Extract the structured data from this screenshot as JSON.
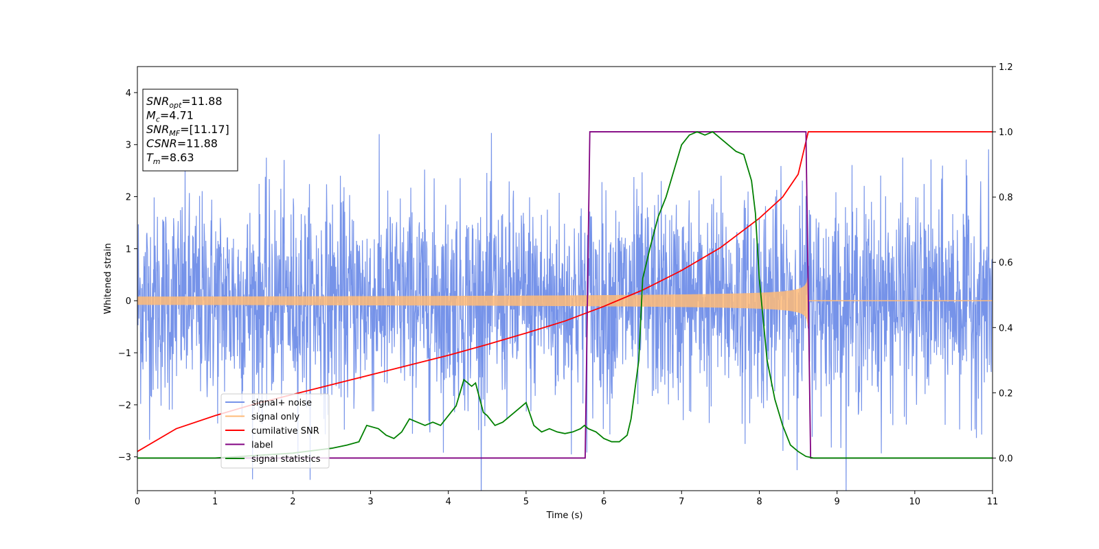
{
  "chart_data": {
    "type": "line",
    "xlabel": "Time (s)",
    "ylabel_left": "Whitened strain",
    "ylabel_right": "",
    "xlim": [
      0,
      11
    ],
    "ylim_left": [
      -3.65,
      4.5
    ],
    "ylim_right": [
      -0.1,
      1.2
    ],
    "xticks": [
      0,
      1,
      2,
      3,
      4,
      5,
      6,
      7,
      8,
      9,
      10,
      11
    ],
    "yticks_left": [
      -3,
      -2,
      -1,
      0,
      1,
      2,
      3,
      4
    ],
    "yticks_right": [
      "0.0",
      "0.2",
      "0.4",
      "0.6",
      "0.8",
      "1.0",
      "1.2"
    ],
    "grid": false,
    "legend_position": "lower-left",
    "info_box": {
      "lines": [
        {
          "var": "SNR",
          "sub": "opt",
          "value": "=11.88"
        },
        {
          "var": "M",
          "sub": "c",
          "value": "=4.71"
        },
        {
          "var": "SNR",
          "sub": "MF",
          "value": "=[11.17]"
        },
        {
          "var": "CSNR",
          "sub": "",
          "value": "=11.88"
        },
        {
          "var": "T",
          "sub": "m",
          "value": "=8.63"
        }
      ]
    },
    "series": [
      {
        "name": "signal+ noise",
        "axis": "left",
        "color": "#4169e1",
        "kind": "noise",
        "approx_std": 1.0,
        "x_range": [
          0,
          11
        ]
      },
      {
        "name": "signal only",
        "axis": "left",
        "color": "#ffbb78",
        "kind": "chirp",
        "start_amplitude": 0.08,
        "peak_amplitude": 0.75,
        "merger_time": 8.63
      },
      {
        "name": "cumilative SNR",
        "axis": "right",
        "color": "#ff0000",
        "x": [
          0,
          0.5,
          1,
          1.5,
          2,
          2.5,
          3,
          3.5,
          4,
          4.5,
          5,
          5.5,
          6,
          6.5,
          7,
          7.5,
          8,
          8.3,
          8.5,
          8.63,
          11
        ],
        "y": [
          0.02,
          0.09,
          0.13,
          0.165,
          0.195,
          0.225,
          0.255,
          0.285,
          0.315,
          0.348,
          0.383,
          0.42,
          0.465,
          0.515,
          0.575,
          0.645,
          0.735,
          0.8,
          0.87,
          1.0,
          1.0
        ]
      },
      {
        "name": "label",
        "axis": "right",
        "color": "#800080",
        "x": [
          0,
          5.76,
          5.82,
          8.6,
          8.66,
          11
        ],
        "y": [
          0,
          0,
          1,
          1,
          0,
          0
        ]
      },
      {
        "name": "signal statistics",
        "axis": "right",
        "color": "#008000",
        "x": [
          0,
          1,
          2,
          2.5,
          2.7,
          2.85,
          2.95,
          3.1,
          3.2,
          3.3,
          3.4,
          3.5,
          3.6,
          3.7,
          3.8,
          3.9,
          4.0,
          4.1,
          4.2,
          4.3,
          4.35,
          4.45,
          4.5,
          4.6,
          4.7,
          4.8,
          4.9,
          5.0,
          5.1,
          5.2,
          5.3,
          5.4,
          5.5,
          5.6,
          5.7,
          5.75,
          5.8,
          5.9,
          6.0,
          6.1,
          6.2,
          6.3,
          6.35,
          6.45,
          6.5,
          6.6,
          6.7,
          6.8,
          6.9,
          7.0,
          7.1,
          7.2,
          7.3,
          7.4,
          7.5,
          7.6,
          7.7,
          7.8,
          7.9,
          7.95,
          8.0,
          8.1,
          8.2,
          8.3,
          8.4,
          8.5,
          8.6,
          8.7,
          9,
          11
        ],
        "y": [
          0.0,
          0.0,
          0.015,
          0.03,
          0.04,
          0.05,
          0.1,
          0.09,
          0.07,
          0.06,
          0.08,
          0.12,
          0.11,
          0.1,
          0.11,
          0.1,
          0.13,
          0.16,
          0.24,
          0.22,
          0.23,
          0.14,
          0.13,
          0.1,
          0.11,
          0.13,
          0.15,
          0.17,
          0.1,
          0.08,
          0.09,
          0.08,
          0.075,
          0.08,
          0.09,
          0.1,
          0.09,
          0.08,
          0.06,
          0.05,
          0.05,
          0.07,
          0.12,
          0.3,
          0.55,
          0.65,
          0.74,
          0.8,
          0.88,
          0.96,
          0.99,
          1.0,
          0.99,
          1.0,
          0.98,
          0.96,
          0.94,
          0.93,
          0.85,
          0.75,
          0.55,
          0.3,
          0.18,
          0.1,
          0.04,
          0.02,
          0.005,
          0.0,
          0.0,
          0.0
        ]
      }
    ]
  }
}
